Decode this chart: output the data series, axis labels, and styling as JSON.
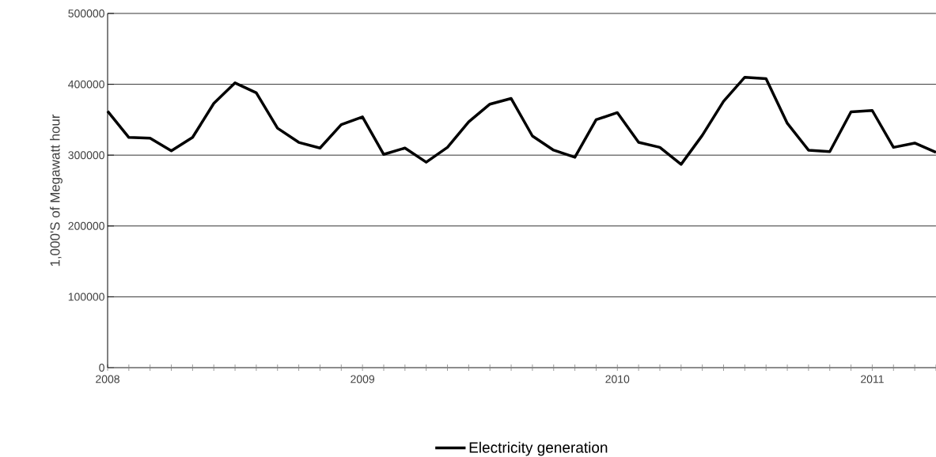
{
  "chart_data": {
    "type": "line",
    "ylabel": "1,000'S of Megawatt hour",
    "categories": [
      "2008",
      null,
      null,
      null,
      null,
      null,
      null,
      null,
      null,
      null,
      null,
      null,
      "2009",
      null,
      null,
      null,
      null,
      null,
      null,
      null,
      null,
      null,
      null,
      null,
      "2010",
      null,
      null,
      null,
      null,
      null,
      null,
      null,
      null,
      null,
      null,
      null,
      "2011",
      null,
      null,
      null
    ],
    "series": [
      {
        "name": "Electricity generation",
        "color": "#000000",
        "values": [
          362000,
          325000,
          324000,
          306000,
          325000,
          373000,
          402000,
          388000,
          338000,
          318000,
          310000,
          343000,
          354000,
          301000,
          310000,
          290000,
          311000,
          347000,
          372000,
          380000,
          327000,
          307000,
          297000,
          350000,
          360000,
          318000,
          311000,
          287000,
          328000,
          376000,
          410000,
          408000,
          345000,
          307000,
          305000,
          361000,
          363000,
          311000,
          317000,
          304000
        ]
      }
    ],
    "ylim": [
      0,
      500000
    ],
    "yticks": [
      0,
      100000,
      200000,
      300000,
      400000,
      500000
    ],
    "grid": "y",
    "legend": "bottom"
  }
}
